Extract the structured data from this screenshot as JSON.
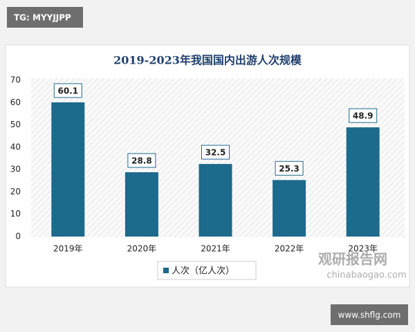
{
  "chart_data": {
    "type": "bar",
    "title": "2019-2023年我国国内出游人次规模",
    "categories": [
      "2019年",
      "2020年",
      "2021年",
      "2022年",
      "2023年"
    ],
    "series": [
      {
        "name": "人次（亿人次）",
        "color": "#1c6a8c",
        "values": [
          60.1,
          28.8,
          32.5,
          25.3,
          48.9
        ]
      }
    ],
    "ylim": [
      0,
      70
    ],
    "yticks": [
      0,
      10,
      20,
      30,
      40,
      50,
      60,
      70
    ],
    "grid": false,
    "legend": "bottom"
  },
  "overlay": {
    "tg_label": "TG: MYYJJPP",
    "site": "www.shflg.com",
    "brand": "观研报告网",
    "brand_url": "chinabaogao.com"
  }
}
